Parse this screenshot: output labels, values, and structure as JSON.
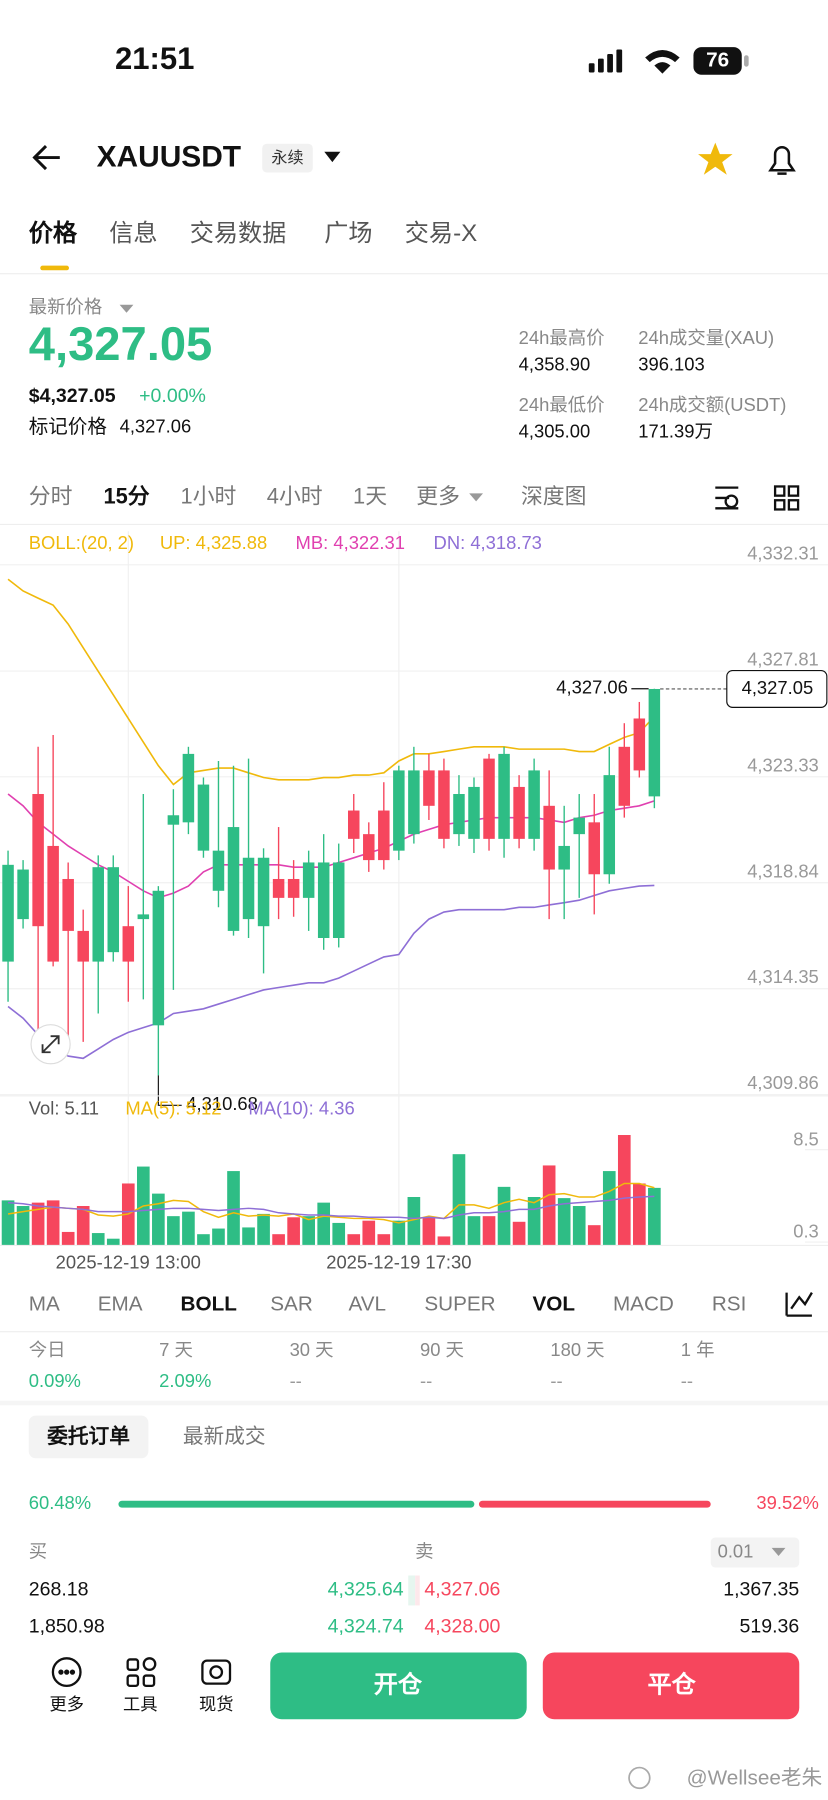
{
  "status_bar": {
    "time": "21:51",
    "battery": "76"
  },
  "header": {
    "symbol": "XAUUSDT",
    "badge": "永续"
  },
  "tabs": [
    "价格",
    "信息",
    "交易数据",
    "广场",
    "交易-X"
  ],
  "price": {
    "label": "最新价格",
    "last": "4,327.05",
    "usd": "$4,327.05",
    "change": "+0.00%",
    "mark_label": "标记价格",
    "mark": "4,327.06"
  },
  "stats": [
    {
      "label": "24h最高价",
      "value": "4,358.90"
    },
    {
      "label": "24h成交量(XAU)",
      "value": "396.103"
    },
    {
      "label": "24h最低价",
      "value": "4,305.00"
    },
    {
      "label": "24h成交额(USDT)",
      "value": "171.39万"
    }
  ],
  "intervals": [
    "分时",
    "15分",
    "1小时",
    "4小时",
    "1天",
    "更多",
    "深度图"
  ],
  "chart_data": {
    "type": "candlestick",
    "boll_label": "BOLL:(20, 2)",
    "categories": [
      null,
      null,
      null,
      null,
      null,
      null,
      null,
      null,
      "2025-12-19 13:00",
      null,
      null,
      null,
      null,
      null,
      null,
      null,
      null,
      null,
      null,
      null,
      null,
      null,
      null,
      null,
      null,
      null,
      "2025-12-19 17:30",
      null,
      null,
      null,
      null,
      null,
      null,
      null,
      null,
      null,
      null,
      null,
      null,
      null,
      null,
      null,
      null,
      null
    ],
    "open": [
      4315.5,
      4317.3,
      4322.6,
      4320.4,
      4319.0,
      4316.8,
      4315.5,
      4315.9,
      4317.0,
      4317.3,
      4312.8,
      4321.3,
      4321.4,
      4320.2,
      4318.5,
      4316.8,
      4317.3,
      4317.0,
      4319.0,
      4319.0,
      4318.2,
      4316.5,
      4316.5,
      4321.9,
      4320.9,
      4321.9,
      4320.2,
      4320.9,
      4323.6,
      4323.6,
      4320.9,
      4320.7,
      4324.1,
      4320.7,
      4322.9,
      4320.7,
      4322.1,
      4319.4,
      4320.9,
      4321.4,
      4319.2,
      4324.6,
      4325.8,
      4322.5
    ],
    "high": [
      4320.2,
      4319.8,
      4324.6,
      4325.1,
      4319.7,
      4317.7,
      4320.0,
      4320.0,
      4318.7,
      4322.6,
      4318.7,
      4322.8,
      4324.6,
      4323.3,
      4324.0,
      4323.8,
      4324.1,
      4320.3,
      4321.2,
      4319.8,
      4320.2,
      4320.9,
      4320.5,
      4322.6,
      4321.4,
      4323.1,
      4323.8,
      4324.6,
      4324.3,
      4324.1,
      4323.4,
      4323.3,
      4324.3,
      4324.6,
      4323.4,
      4324.1,
      4323.6,
      4322.1,
      4322.6,
      4322.6,
      4324.6,
      4325.6,
      4326.5,
      4327.06
    ],
    "low": [
      4313.8,
      4316.9,
      4312.3,
      4315.3,
      4312.1,
      4312.1,
      4313.3,
      4315.5,
      4313.8,
      4313.9,
      4310.68,
      4314.3,
      4320.9,
      4319.9,
      4317.8,
      4316.6,
      4316.5,
      4315.0,
      4317.3,
      4317.4,
      4316.8,
      4316.0,
      4316.1,
      4320.1,
      4319.3,
      4319.4,
      4319.8,
      4320.5,
      4321.5,
      4320.3,
      4320.4,
      4320.1,
      4320.2,
      4319.9,
      4320.3,
      4320.2,
      4317.3,
      4317.3,
      4318.2,
      4317.5,
      4318.8,
      4321.6,
      4323.3,
      4322.0
    ],
    "close": [
      4319.6,
      4319.4,
      4317.0,
      4315.5,
      4316.8,
      4315.5,
      4319.5,
      4319.5,
      4315.5,
      4317.5,
      4318.5,
      4321.7,
      4324.3,
      4323.0,
      4320.2,
      4321.2,
      4319.9,
      4319.9,
      4318.2,
      4318.2,
      4319.7,
      4319.7,
      4319.7,
      4320.7,
      4319.8,
      4319.8,
      4323.6,
      4323.6,
      4322.1,
      4320.7,
      4322.6,
      4322.9,
      4320.7,
      4324.3,
      4320.7,
      4323.6,
      4319.4,
      4320.4,
      4321.6,
      4319.2,
      4323.4,
      4322.1,
      4323.6,
      4327.05
    ],
    "up_color": "#2ebd85",
    "down_color": "#f6465d",
    "series": [
      {
        "name": "UP",
        "label": "UP: 4,325.88",
        "color": "#f0b90b",
        "values": [
          4331.7,
          4331.2,
          4330.9,
          4330.6,
          4329.8,
          4328.8,
          4327.8,
          4326.8,
          4325.8,
          4324.8,
          4323.8,
          4323.0,
          4323.5,
          4323.6,
          4323.7,
          4323.7,
          4323.5,
          4323.3,
          4323.2,
          4323.2,
          4323.2,
          4323.3,
          4323.3,
          4323.4,
          4323.4,
          4323.5,
          4324.0,
          4324.3,
          4324.3,
          4324.4,
          4324.5,
          4324.6,
          4324.6,
          4324.6,
          4324.5,
          4324.5,
          4324.5,
          4324.5,
          4324.4,
          4324.4,
          4324.7,
          4325.0,
          4325.2,
          4325.88
        ]
      },
      {
        "name": "MB",
        "label": "MB: 4,322.31",
        "color": "#e040b0",
        "values": [
          4322.6,
          4322.1,
          4321.4,
          4320.9,
          4320.4,
          4320.0,
          4319.6,
          4319.3,
          4318.9,
          4318.5,
          4318.2,
          4318.4,
          4318.7,
          4319.3,
          4319.6,
          4319.6,
          4319.6,
          4319.6,
          4319.6,
          4319.5,
          4319.5,
          4319.5,
          4319.7,
          4319.9,
          4320.1,
          4320.3,
          4320.6,
          4320.9,
          4321.1,
          4321.3,
          4321.4,
          4321.5,
          4321.6,
          4321.6,
          4321.6,
          4321.6,
          4321.5,
          4321.4,
          4321.6,
          4321.7,
          4321.9,
          4322.0,
          4322.1,
          4322.31
        ]
      },
      {
        "name": "DN",
        "label": "DN: 4,318.73",
        "color": "#8e6fd6",
        "values": [
          4313.6,
          4313.1,
          4312.4,
          4311.9,
          4311.5,
          4311.4,
          4311.8,
          4312.2,
          4312.5,
          4312.7,
          4312.9,
          4313.3,
          4313.4,
          4313.5,
          4313.7,
          4313.9,
          4314.1,
          4314.3,
          4314.4,
          4314.5,
          4314.6,
          4314.6,
          4314.8,
          4315.1,
          4315.4,
          4315.7,
          4315.8,
          4316.7,
          4317.3,
          4317.6,
          4317.7,
          4317.7,
          4317.7,
          4317.7,
          4317.8,
          4317.8,
          4317.9,
          4318.0,
          4318.1,
          4318.3,
          4318.5,
          4318.6,
          4318.7,
          4318.73
        ]
      }
    ],
    "ylim": [
      4309.71,
      4333.73
    ],
    "yticks": [
      {
        "value": 4332.31,
        "label": "4,332.31"
      },
      {
        "value": 4327.81,
        "label": "4,327.81"
      },
      {
        "value": 4323.33,
        "label": "4,323.33"
      },
      {
        "value": 4318.84,
        "label": "4,318.84"
      },
      {
        "value": 4314.35,
        "label": "4,314.35"
      },
      {
        "value": 4309.86,
        "label": "4,309.86"
      }
    ],
    "annotations": {
      "high": {
        "value": 4327.06,
        "label": "4,327.06"
      },
      "low": {
        "value": 4310.68,
        "label": "4,310.68"
      },
      "last": {
        "value": 4327.05,
        "label": "4,327.05"
      }
    },
    "volume": {
      "label": "Vol: 5.11",
      "values": [
        4.0,
        3.5,
        3.8,
        4.0,
        1.2,
        3.5,
        1.1,
        0.6,
        5.5,
        7.0,
        4.6,
        2.6,
        3.0,
        1.0,
        1.5,
        6.6,
        1.6,
        2.8,
        1.0,
        2.5,
        2.6,
        3.8,
        2.0,
        1.0,
        2.2,
        1.0,
        2.2,
        4.3,
        2.5,
        0.8,
        8.1,
        2.6,
        2.6,
        5.2,
        2.1,
        4.3,
        7.1,
        4.2,
        3.5,
        1.8,
        6.6,
        9.8,
        5.5,
        5.11
      ],
      "ylim": [
        0,
        10
      ],
      "yticks": [
        8.5,
        0.3
      ],
      "series": [
        {
          "name": "MA(5)",
          "label": "MA(5): 5.12",
          "color": "#f0b90b",
          "values": [
            2.8,
            3.0,
            3.2,
            3.4,
            3.3,
            3.2,
            2.7,
            2.6,
            2.8,
            3.5,
            3.7,
            4.0,
            3.9,
            3.0,
            2.5,
            2.9,
            2.6,
            2.7,
            2.6,
            2.8,
            2.3,
            2.6,
            2.5,
            2.4,
            2.4,
            2.3,
            2.0,
            2.3,
            2.6,
            2.4,
            3.6,
            3.6,
            3.3,
            3.8,
            4.1,
            3.8,
            4.5,
            4.6,
            4.3,
            4.3,
            4.8,
            5.5,
            5.5,
            5.12
          ]
        },
        {
          "name": "MA(10)",
          "label": "MA(10): 4.36",
          "color": "#8e6fd6",
          "values": [
            3.8,
            3.7,
            3.5,
            3.4,
            3.3,
            3.2,
            3.0,
            3.0,
            3.0,
            3.1,
            3.2,
            3.3,
            3.3,
            3.2,
            3.1,
            3.2,
            3.3,
            3.2,
            2.9,
            2.8,
            2.7,
            2.7,
            2.6,
            2.6,
            2.5,
            2.5,
            2.5,
            2.4,
            2.5,
            2.4,
            2.7,
            2.9,
            2.9,
            3.0,
            3.2,
            3.2,
            3.5,
            3.7,
            3.8,
            3.9,
            4.0,
            4.2,
            4.3,
            4.36
          ]
        }
      ]
    }
  },
  "indicators": [
    "MA",
    "EMA",
    "BOLL",
    "SAR",
    "AVL",
    "SUPER",
    "VOL",
    "MACD",
    "RSI"
  ],
  "performance": [
    {
      "label": "今日",
      "value": "0.09%"
    },
    {
      "label": "7 天",
      "value": "2.09%"
    },
    {
      "label": "30 天",
      "value": "--"
    },
    {
      "label": "90 天",
      "value": "--"
    },
    {
      "label": "180 天",
      "value": "--"
    },
    {
      "label": "1 年",
      "value": "--"
    }
  ],
  "order_tabs": [
    "委托订单",
    "最新成交"
  ],
  "ratio": {
    "buy": {
      "value": 60.48,
      "label": "60.48%"
    },
    "sell": {
      "value": 39.52,
      "label": "39.52%"
    }
  },
  "order_book": {
    "buy_label": "买",
    "sell_label": "卖",
    "precision": "0.01",
    "rows": [
      [
        "268.18",
        "4,325.64",
        "4,327.06",
        "1,367.35"
      ],
      [
        "1,850.98",
        "4,324.74",
        "4,328.00",
        "519.36"
      ]
    ]
  },
  "bottom_bar": {
    "items": [
      "更多",
      "工具",
      "现货"
    ],
    "open": "开仓",
    "close": "平仓"
  },
  "watermark": "@Wellsee老朱"
}
